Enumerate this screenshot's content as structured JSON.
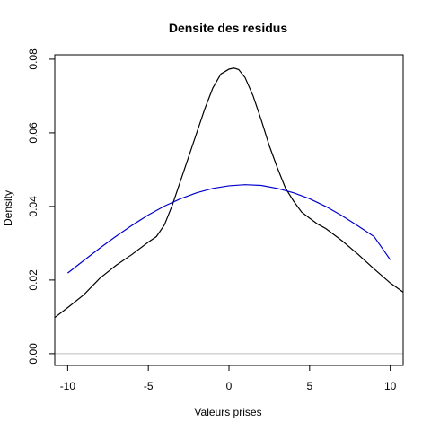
{
  "chart_data": {
    "type": "line",
    "title": "Densite des residus",
    "xlabel": "Valeurs prises",
    "ylabel": "Density",
    "xlim": [
      -10.8,
      10.8
    ],
    "ylim": [
      -0.0032,
      0.0812
    ],
    "x_ticks": [
      -10,
      -5,
      0,
      5,
      10
    ],
    "y_ticks": [
      0.0,
      0.02,
      0.04,
      0.06,
      0.08
    ],
    "y_tick_labels": [
      "0.00",
      "0.02",
      "0.04",
      "0.06",
      "0.08"
    ],
    "grid": false,
    "legend": false,
    "baseline": {
      "y": 0,
      "color": "#bebebe"
    },
    "series": [
      {
        "color": "#000000",
        "x": [
          -10.8,
          -10,
          -9,
          -8,
          -7,
          -6,
          -5,
          -4.5,
          -4,
          -3.5,
          -3,
          -2.5,
          -2,
          -1.5,
          -1,
          -0.5,
          0,
          0.3,
          0.6,
          1,
          1.5,
          2,
          2.5,
          3,
          3.5,
          4,
          4.5,
          5,
          5.5,
          6,
          7,
          8,
          9,
          10,
          10.8
        ],
        "y": [
          0.0098,
          0.0125,
          0.016,
          0.0205,
          0.024,
          0.027,
          0.0303,
          0.0318,
          0.035,
          0.0405,
          0.047,
          0.0535,
          0.06,
          0.0665,
          0.0722,
          0.076,
          0.0773,
          0.0776,
          0.0772,
          0.075,
          0.07,
          0.0635,
          0.0565,
          0.0505,
          0.045,
          0.0415,
          0.0385,
          0.0368,
          0.0352,
          0.034,
          0.0307,
          0.027,
          0.023,
          0.0192,
          0.0167
        ]
      },
      {
        "color": "#0000cd",
        "x": [
          -10,
          -9,
          -8,
          -7,
          -6,
          -5,
          -4,
          -3,
          -2,
          -1,
          0,
          1,
          2,
          3,
          4,
          5,
          6,
          7,
          8,
          9,
          10
        ],
        "y": [
          0.0219,
          0.0253,
          0.0287,
          0.0319,
          0.0349,
          0.0377,
          0.0401,
          0.0421,
          0.0437,
          0.0449,
          0.0456,
          0.0459,
          0.0457,
          0.0449,
          0.0437,
          0.0421,
          0.04,
          0.0375,
          0.0347,
          0.0318,
          0.0255
        ]
      }
    ]
  }
}
